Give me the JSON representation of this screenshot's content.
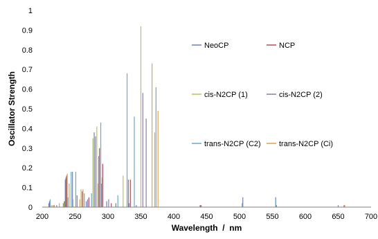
{
  "chart_data": {
    "type": "bar",
    "xlabel": "Wavelength  /  nm",
    "ylabel": "Oscillator Strength",
    "xlim": [
      200,
      700
    ],
    "ylim": [
      0,
      1
    ],
    "x_ticks": [
      "200",
      "250",
      "300",
      "350",
      "400",
      "450",
      "500",
      "550",
      "600",
      "650",
      "700"
    ],
    "y_ticks": [
      "0",
      "0.1",
      "0.2",
      "0.3",
      "0.4",
      "0.5",
      "0.6",
      "0.7",
      "0.8",
      "0.9",
      "1"
    ],
    "grid": false,
    "legend": "inside, right",
    "series": [
      {
        "name": "NeoCP",
        "color": "#6f7fb0",
        "lines": [
          {
            "x": 211,
            "y": 0.03
          },
          {
            "x": 232,
            "y": 0.02
          },
          {
            "x": 236,
            "y": 0.15
          },
          {
            "x": 246,
            "y": 0.18
          },
          {
            "x": 267,
            "y": 0.03
          },
          {
            "x": 279,
            "y": 0.38
          },
          {
            "x": 290,
            "y": 0.12
          },
          {
            "x": 298,
            "y": 0.03
          },
          {
            "x": 312,
            "y": 0.02
          },
          {
            "x": 332,
            "y": 0.02
          },
          {
            "x": 343,
            "y": 0.01
          },
          {
            "x": 440,
            "y": 0.01
          },
          {
            "x": 505,
            "y": 0.05
          },
          {
            "x": 555,
            "y": 0.05
          },
          {
            "x": 650,
            "y": 0.01
          }
        ]
      },
      {
        "name": "NCP",
        "color": "#b04a5a",
        "lines": [
          {
            "x": 218,
            "y": 0.01
          },
          {
            "x": 234,
            "y": 0.03
          },
          {
            "x": 237,
            "y": 0.16
          },
          {
            "x": 261,
            "y": 0.08
          },
          {
            "x": 271,
            "y": 0.05
          },
          {
            "x": 287,
            "y": 0.3
          },
          {
            "x": 292,
            "y": 0.22
          },
          {
            "x": 305,
            "y": 0.02
          },
          {
            "x": 334,
            "y": 0.14
          },
          {
            "x": 441,
            "y": 0.01
          },
          {
            "x": 556,
            "y": 0.01
          },
          {
            "x": 659,
            "y": 0.01
          }
        ]
      },
      {
        "name": "cis-N2CP (1)",
        "color": "#b5c25a",
        "lines": [
          {
            "x": 214,
            "y": 0.01
          },
          {
            "x": 233,
            "y": 0.03
          },
          {
            "x": 247,
            "y": 0.04
          },
          {
            "x": 259,
            "y": 0.09
          },
          {
            "x": 277,
            "y": 0.35
          },
          {
            "x": 283,
            "y": 0.41
          },
          {
            "x": 291,
            "y": 0.15
          },
          {
            "x": 323,
            "y": 0.16
          },
          {
            "x": 350,
            "y": 0.92
          },
          {
            "x": 371,
            "y": 0.38
          }
        ]
      },
      {
        "name": "cis-N2CP (2)",
        "color": "#8a7aa8",
        "lines": [
          {
            "x": 210,
            "y": 0.02
          },
          {
            "x": 222,
            "y": 0.01
          },
          {
            "x": 235,
            "y": 0.14
          },
          {
            "x": 253,
            "y": 0.06
          },
          {
            "x": 269,
            "y": 0.04
          },
          {
            "x": 281,
            "y": 0.36
          },
          {
            "x": 286,
            "y": 0.26
          },
          {
            "x": 301,
            "y": 0.04
          },
          {
            "x": 331,
            "y": 0.14
          },
          {
            "x": 353,
            "y": 0.58
          },
          {
            "x": 358,
            "y": 0.45
          }
        ]
      },
      {
        "name": "trans-N2CP (C2)",
        "color": "#6aa8c4",
        "lines": [
          {
            "x": 212,
            "y": 0.04
          },
          {
            "x": 239,
            "y": 0.05
          },
          {
            "x": 244,
            "y": 0.18
          },
          {
            "x": 251,
            "y": 0.18
          },
          {
            "x": 264,
            "y": 0.07
          },
          {
            "x": 275,
            "y": 0.07
          },
          {
            "x": 289,
            "y": 0.43
          },
          {
            "x": 315,
            "y": 0.06
          },
          {
            "x": 329,
            "y": 0.68
          },
          {
            "x": 340,
            "y": 0.46
          },
          {
            "x": 373,
            "y": 0.61
          },
          {
            "x": 504,
            "y": 0.02
          },
          {
            "x": 555,
            "y": 0.04
          }
        ]
      },
      {
        "name": "trans-N2CP (Ci)",
        "color": "#e0a050",
        "lines": [
          {
            "x": 216,
            "y": 0.01
          },
          {
            "x": 226,
            "y": 0.02
          },
          {
            "x": 238,
            "y": 0.17
          },
          {
            "x": 241,
            "y": 0.12
          },
          {
            "x": 257,
            "y": 0.04
          },
          {
            "x": 262,
            "y": 0.09
          },
          {
            "x": 285,
            "y": 0.12
          },
          {
            "x": 367,
            "y": 0.73
          },
          {
            "x": 376,
            "y": 0.49
          },
          {
            "x": 442,
            "y": 0.01
          },
          {
            "x": 660,
            "y": 0.01
          }
        ]
      }
    ]
  }
}
